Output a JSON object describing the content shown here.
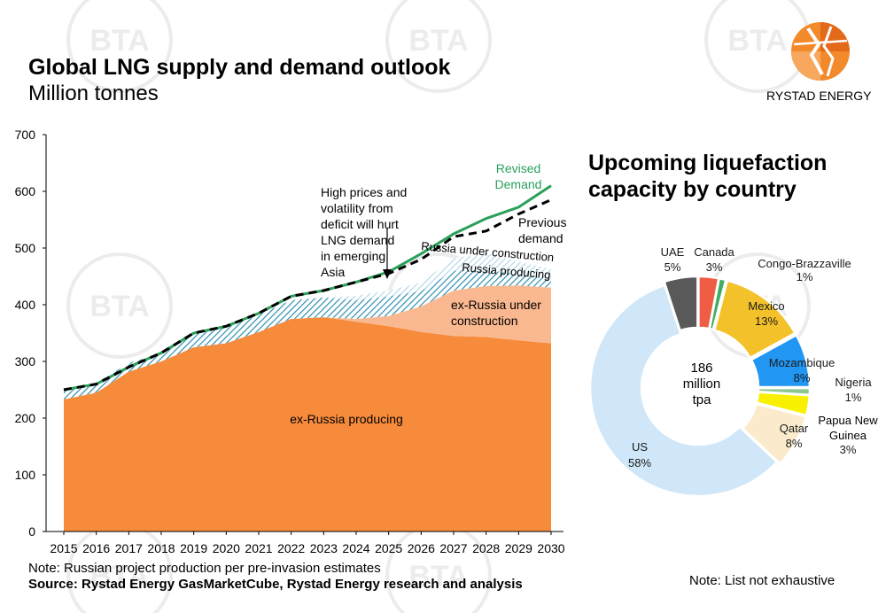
{
  "header": {
    "title": "Global LNG supply and demand outlook",
    "subtitle": "Million tonnes"
  },
  "brand": {
    "name": "RYSTAD ENERGY",
    "watermark_text": "BTA",
    "colors": {
      "orange": "#f28a2b",
      "dark": "#4d4d4d"
    }
  },
  "footer": {
    "note": "Note: Russian project production per pre-invasion estimates",
    "source": "Source: Rystad Energy GasMarketCube, Rystad Energy research and analysis",
    "right_note": "Note: List not exhaustive"
  },
  "chart_data": [
    {
      "type": "area",
      "ylim": [
        0,
        700
      ],
      "yticks": [
        0,
        100,
        200,
        300,
        400,
        500,
        600,
        700
      ],
      "x": [
        "2015",
        "2016",
        "2017",
        "2018",
        "2019",
        "2020",
        "2021",
        "2022",
        "2023",
        "2024",
        "2025",
        "2026",
        "2027",
        "2028",
        "2029",
        "2030"
      ],
      "series": [
        {
          "name": "ex-Russia producing",
          "kind": "stacked",
          "color": "#f68b3c",
          "values": [
            233,
            245,
            282,
            300,
            325,
            332,
            352,
            375,
            378,
            370,
            362,
            352,
            345,
            343,
            337,
            332
          ]
        },
        {
          "name": "ex-Russia under construction",
          "kind": "stacked",
          "color": "#f9b88f",
          "values": [
            0,
            0,
            0,
            0,
            0,
            0,
            0,
            0,
            0,
            5,
            18,
            45,
            80,
            90,
            97,
            98
          ]
        },
        {
          "name": "Russia producing",
          "kind": "stacked",
          "color": "#4bb0cf",
          "pattern": "hatch",
          "values": [
            18,
            17,
            15,
            15,
            25,
            28,
            30,
            33,
            35,
            33,
            35,
            27,
            35,
            28,
            20,
            15
          ]
        },
        {
          "name": "Russia under construction",
          "kind": "stacked",
          "color": "#a9d4e6",
          "pattern": "hatch",
          "values": [
            0,
            0,
            0,
            0,
            0,
            0,
            0,
            0,
            0,
            8,
            10,
            15,
            22,
            30,
            22,
            18
          ]
        },
        {
          "name": "Revised Demand",
          "kind": "line",
          "color": "#2aa05a",
          "values": [
            250,
            260,
            290,
            315,
            350,
            362,
            385,
            415,
            425,
            440,
            458,
            490,
            525,
            552,
            572,
            610
          ]
        },
        {
          "name": "Previous demand",
          "kind": "dashed",
          "color": "#000000",
          "values": [
            250,
            260,
            290,
            315,
            350,
            362,
            385,
            415,
            425,
            440,
            455,
            480,
            520,
            530,
            560,
            585
          ]
        }
      ],
      "annotations": {
        "revised_demand": [
          "Revised",
          "Demand"
        ],
        "previous_demand": [
          "Previous",
          "demand"
        ],
        "russia_uc": "Russia under construction",
        "russia_prod": "Russia producing",
        "exrussia_uc": [
          "ex-Russia under",
          "construction"
        ],
        "exrussia_prod": "ex-Russia producing",
        "comment": [
          "High prices and",
          "volatility from",
          "deficit will hurt",
          "LNG demand",
          "in emerging",
          "Asia"
        ]
      }
    },
    {
      "type": "pie",
      "title": [
        "Upcoming liquefaction",
        "capacity by country"
      ],
      "center_label": [
        "186",
        "million",
        "tpa"
      ],
      "slices": [
        {
          "label": "UAE",
          "pct": "5%",
          "value": 5,
          "color": "#595959"
        },
        {
          "label": "Canada",
          "pct": "3%",
          "value": 3,
          "color": "#ef5d45"
        },
        {
          "label": "Congo-Brazzaville",
          "pct": "1%",
          "value": 1,
          "color": "#3dae5f"
        },
        {
          "label": "Mexico",
          "pct": "13%",
          "value": 13,
          "color": "#f3c12a"
        },
        {
          "label": "Mozambique",
          "pct": "8%",
          "value": 8,
          "color": "#2196f3"
        },
        {
          "label": "Nigeria",
          "pct": "1%",
          "value": 1,
          "color": "#8bc78f"
        },
        {
          "label": "Papua New Guinea",
          "pct": "3%",
          "value": 3,
          "color": "#f8f000"
        },
        {
          "label": "Qatar",
          "pct": "8%",
          "value": 8,
          "color": "#fbebcc"
        },
        {
          "label": "US",
          "pct": "58%",
          "value": 58,
          "color": "#cfe7f8"
        }
      ]
    }
  ]
}
